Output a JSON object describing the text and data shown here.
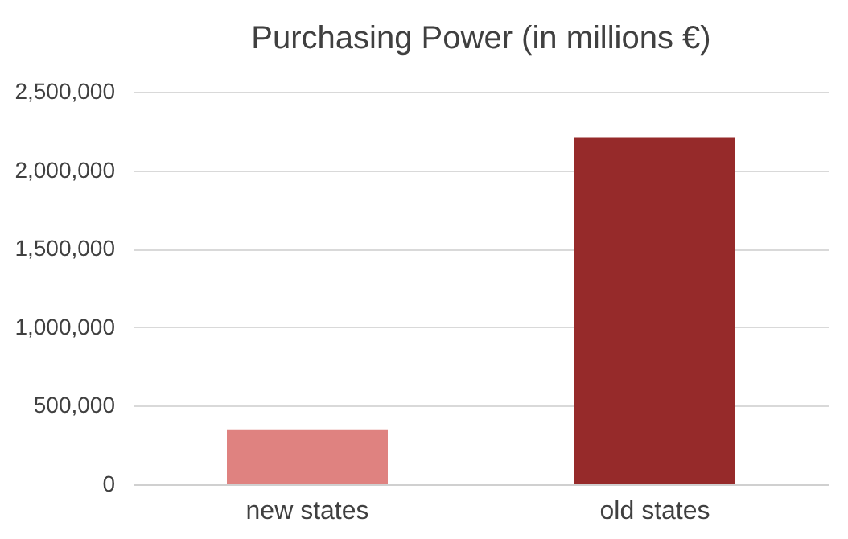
{
  "chart_data": {
    "type": "bar",
    "title": "Purchasing Power (in millions €)",
    "categories": [
      "new states",
      "old states"
    ],
    "values": [
      350000,
      2210000
    ],
    "colors": [
      "#df8280",
      "#962a2a"
    ],
    "ylim": [
      0,
      2500000
    ],
    "yticks": [
      0,
      {
        "value": 500000,
        "label": "500,000"
      },
      {
        "value": 1000000,
        "label": "1,000,000"
      },
      {
        "value": 1500000,
        "label": "1,500,000"
      },
      {
        "value": 2000000,
        "label": "2,000,000"
      },
      {
        "value": 2500000,
        "label": "2,500,000"
      }
    ],
    "grid": "y"
  }
}
